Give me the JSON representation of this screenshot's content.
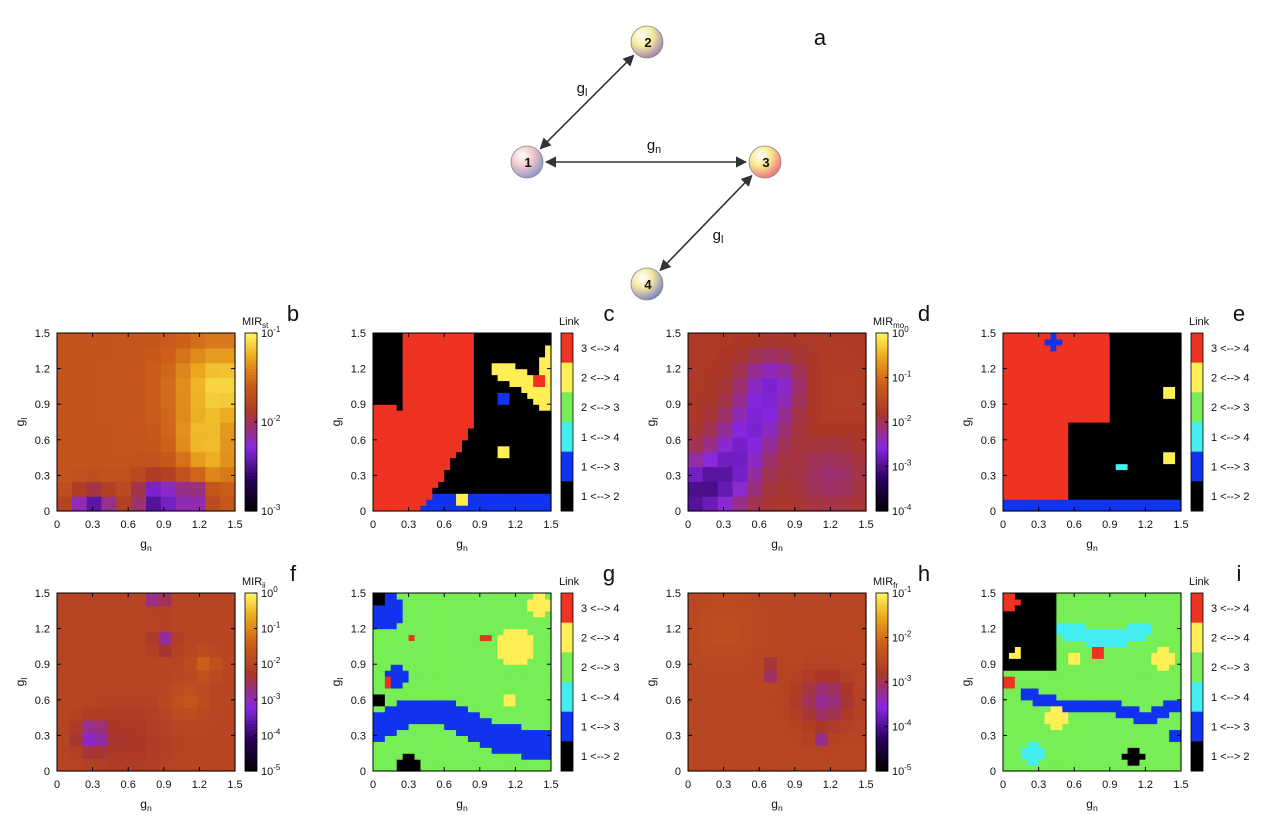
{
  "figure": {
    "panel_a": {
      "label": "a",
      "nodes": [
        {
          "id": "1",
          "label": "1"
        },
        {
          "id": "2",
          "label": "2"
        },
        {
          "id": "3",
          "label": "3"
        },
        {
          "id": "4",
          "label": "4"
        }
      ],
      "edges": [
        {
          "from": "1",
          "to": "2",
          "label_main": "g",
          "label_sub": "l"
        },
        {
          "from": "1",
          "to": "3",
          "label_main": "g",
          "label_sub": "n"
        },
        {
          "from": "3",
          "to": "4",
          "label_main": "g",
          "label_sub": "l"
        }
      ]
    },
    "colors": {
      "links": {
        "1 <--> 2": "#000000",
        "1 <--> 3": "#1133ee",
        "1 <--> 4": "#44eeee",
        "2 <--> 3": "#77ee55",
        "2 <--> 4": "#ffee55",
        "3 <--> 4": "#ee3322"
      }
    }
  },
  "chart_data": [
    {
      "panel": "b",
      "type": "heatmap",
      "xlabel_main": "g",
      "xlabel_sub": "n",
      "ylabel_main": "g",
      "ylabel_sub": "l",
      "xlim": [
        0,
        1.5
      ],
      "ylim": [
        0,
        1.5
      ],
      "xticks": [
        "0",
        "0.3",
        "0.6",
        "0.9",
        "1.2",
        "1.5"
      ],
      "yticks": [
        "0",
        "0.3",
        "0.6",
        "0.9",
        "1.2",
        "1.5"
      ],
      "colorbar": {
        "title_main": "MIR",
        "title_sub": "st",
        "scale": "log",
        "min_exp": -3,
        "max_exp": -1,
        "tick_exps": [
          -3,
          -2,
          -1
        ]
      },
      "grid": {
        "size": 12,
        "base_exp": -1.65,
        "features": [
          {
            "type": "blob",
            "x": 1.38,
            "y": 1.05,
            "r": 0.38,
            "delta": 0.55
          },
          {
            "type": "blob",
            "x": 1.2,
            "y": 0.6,
            "r": 0.22,
            "delta": 0.3
          },
          {
            "type": "blob",
            "x": 1.35,
            "y": 0.4,
            "r": 0.2,
            "delta": 0.25
          },
          {
            "type": "blob",
            "x": 0.3,
            "y": 0.0,
            "r": 0.18,
            "delta": -0.9
          },
          {
            "type": "blob",
            "x": 0.85,
            "y": 0.1,
            "r": 0.18,
            "delta": -0.9
          },
          {
            "type": "blob",
            "x": 1.15,
            "y": 0.12,
            "r": 0.12,
            "delta": -0.7
          }
        ]
      }
    },
    {
      "panel": "c",
      "type": "heatmap",
      "xlabel_main": "g",
      "xlabel_sub": "n",
      "ylabel_main": "g",
      "ylabel_sub": "l",
      "xlim": [
        0,
        1.5
      ],
      "ylim": [
        0,
        1.5
      ],
      "xticks": [
        "0",
        "0.3",
        "0.6",
        "0.9",
        "1.2",
        "1.5"
      ],
      "yticks": [
        "0",
        "0.3",
        "0.6",
        "0.9",
        "1.2",
        "1.5"
      ],
      "legend_title": "Link",
      "categories": [
        "3 <--> 4",
        "2 <--> 4",
        "2 <--> 3",
        "1 <--> 4",
        "1 <--> 3",
        "1 <--> 2"
      ],
      "grid": {
        "size": 30,
        "base": "1 <--> 2",
        "features": [
          {
            "type": "rect",
            "x0": 0,
            "x1": 1.5,
            "y0": 0,
            "y1": 0.15,
            "value": "1 <--> 3"
          },
          {
            "type": "line",
            "points": [
              [
                0,
                0.18
              ],
              [
                0.2,
                0.25
              ],
              [
                0.4,
                0.55
              ],
              [
                0.55,
                0.8
              ],
              [
                0.55,
                1.5
              ]
            ],
            "r": 0.3,
            "value": "3 <--> 4"
          },
          {
            "type": "blob",
            "x": 0.1,
            "y": 0.6,
            "r": 0.3,
            "value": "3 <--> 4"
          },
          {
            "type": "line",
            "points": [
              [
                1.05,
                1.2
              ],
              [
                1.3,
                1.1
              ],
              [
                1.45,
                0.9
              ],
              [
                1.5,
                1.35
              ]
            ],
            "r": 0.07,
            "value": "2 <--> 4"
          },
          {
            "type": "blob",
            "x": 1.38,
            "y": 1.1,
            "r": 0.06,
            "value": "3 <--> 4"
          },
          {
            "type": "blob",
            "x": 0.75,
            "y": 0.12,
            "r": 0.06,
            "value": "2 <--> 4"
          },
          {
            "type": "blob",
            "x": 1.1,
            "y": 0.5,
            "r": 0.06,
            "value": "2 <--> 4"
          },
          {
            "type": "blob",
            "x": 1.1,
            "y": 0.95,
            "r": 0.05,
            "value": "1 <--> 3"
          }
        ]
      }
    },
    {
      "panel": "d",
      "type": "heatmap",
      "xlabel_main": "g",
      "xlabel_sub": "n",
      "ylabel_main": "g",
      "ylabel_sub": "l",
      "xlim": [
        0,
        1.5
      ],
      "ylim": [
        0,
        1.5
      ],
      "xticks": [
        "0",
        "0.3",
        "0.6",
        "0.9",
        "1.2",
        "1.5"
      ],
      "yticks": [
        "0",
        "0.3",
        "0.6",
        "0.9",
        "1.2",
        "1.5"
      ],
      "colorbar": {
        "title_main": "MIR",
        "title_sub": "mo",
        "scale": "log",
        "min_exp": -4,
        "max_exp": 0,
        "tick_exps": [
          -4,
          -3,
          -2,
          -1,
          0
        ]
      },
      "grid": {
        "size": 12,
        "base_exp": -1.75,
        "features": [
          {
            "type": "line",
            "points": [
              [
                0.0,
                0.1
              ],
              [
                0.35,
                0.35
              ],
              [
                0.6,
                0.8
              ],
              [
                0.7,
                1.05
              ]
            ],
            "r": 0.25,
            "delta": -0.9
          },
          {
            "type": "blob",
            "x": 0.15,
            "y": 0.15,
            "r": 0.35,
            "delta": -0.4
          },
          {
            "type": "blob",
            "x": 1.2,
            "y": 0.3,
            "r": 0.3,
            "delta": -0.35
          },
          {
            "type": "blob",
            "x": 1.25,
            "y": 1.0,
            "r": 0.3,
            "delta": 0.1
          }
        ]
      }
    },
    {
      "panel": "e",
      "type": "heatmap",
      "xlabel_main": "g",
      "xlabel_sub": "n",
      "ylabel_main": "g",
      "ylabel_sub": "l",
      "xlim": [
        0,
        1.5
      ],
      "ylim": [
        0,
        1.5
      ],
      "xticks": [
        "0",
        "0.3",
        "0.6",
        "0.9",
        "1.2",
        "1.5"
      ],
      "yticks": [
        "0",
        "0.3",
        "0.6",
        "0.9",
        "1.2",
        "1.5"
      ],
      "legend_title": "Link",
      "categories": [
        "3 <--> 4",
        "2 <--> 4",
        "2 <--> 3",
        "1 <--> 4",
        "1 <--> 3",
        "1 <--> 2"
      ],
      "grid": {
        "size": 30,
        "base": "1 <--> 2",
        "features": [
          {
            "type": "rect",
            "x0": 0,
            "x1": 0.55,
            "y0": 0.12,
            "y1": 1.5,
            "value": "3 <--> 4"
          },
          {
            "type": "rect",
            "x0": 0.55,
            "x1": 0.9,
            "y0": 0.75,
            "y1": 1.5,
            "value": "3 <--> 4"
          },
          {
            "type": "rect",
            "x0": 0,
            "x1": 1.5,
            "y0": 0,
            "y1": 0.12,
            "value": "1 <--> 3"
          },
          {
            "type": "blob",
            "x": 1.42,
            "y": 1.0,
            "r": 0.06,
            "value": "2 <--> 4"
          },
          {
            "type": "blob",
            "x": 1.42,
            "y": 0.45,
            "r": 0.06,
            "value": "2 <--> 4"
          },
          {
            "type": "blob",
            "x": 1.0,
            "y": 0.38,
            "r": 0.05,
            "value": "1 <--> 4"
          },
          {
            "type": "blob",
            "x": 0.42,
            "y": 1.42,
            "r": 0.06,
            "value": "1 <--> 3"
          }
        ]
      }
    },
    {
      "panel": "f",
      "type": "heatmap",
      "xlabel_main": "g",
      "xlabel_sub": "n",
      "ylabel_main": "g",
      "ylabel_sub": "l",
      "xlim": [
        0,
        1.5
      ],
      "ylim": [
        0,
        1.5
      ],
      "xticks": [
        "0",
        "0.3",
        "0.6",
        "0.9",
        "1.2",
        "1.5"
      ],
      "yticks": [
        "0",
        "0.3",
        "0.6",
        "0.9",
        "1.2",
        "1.5"
      ],
      "colorbar": {
        "title_main": "MIR",
        "title_sub": "ii",
        "scale": "log",
        "min_exp": -5,
        "max_exp": 0,
        "tick_exps": [
          -5,
          -4,
          -3,
          -2,
          -1,
          0
        ]
      },
      "grid": {
        "size": 14,
        "base_exp": -1.95,
        "features": [
          {
            "type": "blob",
            "x": 1.25,
            "y": 0.9,
            "r": 0.1,
            "delta": 0.55
          },
          {
            "type": "blob",
            "x": 1.1,
            "y": 0.6,
            "r": 0.15,
            "delta": 0.35
          },
          {
            "type": "blob",
            "x": 0.3,
            "y": 0.3,
            "r": 0.12,
            "delta": -1.2
          },
          {
            "type": "blob",
            "x": 0.85,
            "y": 1.45,
            "r": 0.07,
            "delta": -1.2
          },
          {
            "type": "blob",
            "x": 0.9,
            "y": 1.1,
            "r": 0.08,
            "delta": -1.0
          },
          {
            "type": "blob",
            "x": 0.6,
            "y": 0.25,
            "r": 0.3,
            "delta": -0.3
          }
        ]
      }
    },
    {
      "panel": "g",
      "type": "heatmap",
      "xlabel_main": "g",
      "xlabel_sub": "n",
      "ylabel_main": "g",
      "ylabel_sub": "l",
      "xlim": [
        0,
        1.5
      ],
      "ylim": [
        0,
        1.5
      ],
      "xticks": [
        "0",
        "0.3",
        "0.6",
        "0.9",
        "1.2",
        "1.5"
      ],
      "yticks": [
        "0",
        "0.3",
        "0.6",
        "0.9",
        "1.2",
        "1.5"
      ],
      "legend_title": "Link",
      "categories": [
        "3 <--> 4",
        "2 <--> 4",
        "2 <--> 3",
        "1 <--> 4",
        "1 <--> 3",
        "1 <--> 2"
      ],
      "grid": {
        "size": 30,
        "base": "2 <--> 3",
        "features": [
          {
            "type": "line",
            "points": [
              [
                0.0,
                0.35
              ],
              [
                0.3,
                0.5
              ],
              [
                0.6,
                0.5
              ],
              [
                1.0,
                0.3
              ],
              [
                1.5,
                0.2
              ]
            ],
            "r": 0.12,
            "value": "1 <--> 3"
          },
          {
            "type": "blob",
            "x": 0.1,
            "y": 1.35,
            "r": 0.15,
            "value": "1 <--> 3"
          },
          {
            "type": "blob",
            "x": 0.2,
            "y": 0.8,
            "r": 0.1,
            "value": "1 <--> 3"
          },
          {
            "type": "blob",
            "x": 1.2,
            "y": 1.05,
            "r": 0.15,
            "value": "2 <--> 4"
          },
          {
            "type": "blob",
            "x": 1.4,
            "y": 1.4,
            "r": 0.08,
            "value": "2 <--> 4"
          },
          {
            "type": "blob",
            "x": 0.3,
            "y": 0.05,
            "r": 0.1,
            "value": "1 <--> 2"
          },
          {
            "type": "blob",
            "x": 0.05,
            "y": 1.45,
            "r": 0.05,
            "value": "1 <--> 2"
          },
          {
            "type": "blob",
            "x": 0.05,
            "y": 0.6,
            "r": 0.05,
            "value": "1 <--> 2"
          },
          {
            "type": "blob",
            "x": 0.32,
            "y": 1.12,
            "r": 0.04,
            "value": "3 <--> 4"
          },
          {
            "type": "blob",
            "x": 0.95,
            "y": 1.12,
            "r": 0.04,
            "value": "3 <--> 4"
          },
          {
            "type": "blob",
            "x": 0.12,
            "y": 0.75,
            "r": 0.04,
            "value": "3 <--> 4"
          },
          {
            "type": "blob",
            "x": 1.15,
            "y": 0.6,
            "r": 0.05,
            "value": "2 <--> 4"
          }
        ]
      }
    },
    {
      "panel": "h",
      "type": "heatmap",
      "xlabel_main": "g",
      "xlabel_sub": "n",
      "ylabel_main": "g",
      "ylabel_sub": "l",
      "xlim": [
        0,
        1.5
      ],
      "ylim": [
        0,
        1.5
      ],
      "xticks": [
        "0",
        "0.3",
        "0.6",
        "0.9",
        "1.2",
        "1.5"
      ],
      "yticks": [
        "0",
        "0.3",
        "0.6",
        "0.9",
        "1.2",
        "1.5"
      ],
      "colorbar": {
        "title_main": "MIR",
        "title_sub": "fr",
        "scale": "log",
        "min_exp": -5,
        "max_exp": -1,
        "tick_exps": [
          -5,
          -4,
          -3,
          -2,
          -1
        ]
      },
      "grid": {
        "size": 14,
        "base_exp": -2.55,
        "features": [
          {
            "type": "blob",
            "x": 1.15,
            "y": 0.6,
            "r": 0.2,
            "delta": -0.7
          },
          {
            "type": "blob",
            "x": 0.7,
            "y": 0.85,
            "r": 0.06,
            "delta": -0.9
          },
          {
            "type": "blob",
            "x": 1.1,
            "y": 0.28,
            "r": 0.05,
            "delta": -0.8
          },
          {
            "type": "blob",
            "x": 0.3,
            "y": 1.2,
            "r": 0.3,
            "delta": 0.15
          }
        ]
      }
    },
    {
      "panel": "i",
      "type": "heatmap",
      "xlabel_main": "g",
      "xlabel_sub": "n",
      "ylabel_main": "g",
      "ylabel_sub": "l",
      "xlim": [
        0,
        1.5
      ],
      "ylim": [
        0,
        1.5
      ],
      "xticks": [
        "0",
        "0.3",
        "0.6",
        "0.9",
        "1.2",
        "1.5"
      ],
      "yticks": [
        "0",
        "0.3",
        "0.6",
        "0.9",
        "1.2",
        "1.5"
      ],
      "legend_title": "Link",
      "categories": [
        "3 <--> 4",
        "2 <--> 4",
        "2 <--> 3",
        "1 <--> 4",
        "1 <--> 3",
        "1 <--> 2"
      ],
      "grid": {
        "size": 30,
        "base": "2 <--> 3",
        "features": [
          {
            "type": "rect",
            "x0": 0,
            "x1": 0.45,
            "y0": 0.85,
            "y1": 1.5,
            "value": "1 <--> 2"
          },
          {
            "type": "blob",
            "x": 0.05,
            "y": 1.42,
            "r": 0.08,
            "value": "3 <--> 4"
          },
          {
            "type": "blob",
            "x": 0.12,
            "y": 0.98,
            "r": 0.05,
            "value": "2 <--> 4"
          },
          {
            "type": "line",
            "points": [
              [
                0.5,
                1.2
              ],
              [
                0.9,
                1.1
              ],
              [
                1.2,
                1.2
              ]
            ],
            "r": 0.07,
            "value": "1 <--> 4"
          },
          {
            "type": "line",
            "points": [
              [
                0.2,
                0.65
              ],
              [
                0.5,
                0.55
              ],
              [
                0.9,
                0.55
              ],
              [
                1.2,
                0.45
              ],
              [
                1.45,
                0.55
              ]
            ],
            "r": 0.06,
            "value": "1 <--> 3"
          },
          {
            "type": "blob",
            "x": 0.45,
            "y": 0.45,
            "r": 0.1,
            "value": "2 <--> 4"
          },
          {
            "type": "blob",
            "x": 0.6,
            "y": 0.95,
            "r": 0.06,
            "value": "2 <--> 4"
          },
          {
            "type": "blob",
            "x": 0.8,
            "y": 1.0,
            "r": 0.05,
            "value": "3 <--> 4"
          },
          {
            "type": "blob",
            "x": 1.1,
            "y": 0.12,
            "r": 0.08,
            "value": "1 <--> 2"
          },
          {
            "type": "blob",
            "x": 1.35,
            "y": 0.95,
            "r": 0.08,
            "value": "2 <--> 4"
          },
          {
            "type": "blob",
            "x": 0.25,
            "y": 0.15,
            "r": 0.1,
            "value": "1 <--> 4"
          },
          {
            "type": "blob",
            "x": 0.05,
            "y": 0.75,
            "r": 0.04,
            "value": "3 <--> 4"
          },
          {
            "type": "blob",
            "x": 1.45,
            "y": 0.3,
            "r": 0.06,
            "value": "1 <--> 3"
          }
        ]
      }
    }
  ]
}
